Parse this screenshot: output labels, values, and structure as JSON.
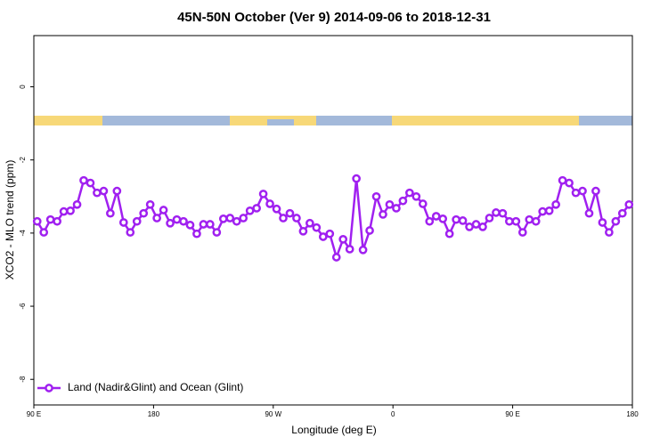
{
  "chart_data": {
    "type": "line",
    "title": "45N-50N October (Ver 9)   2014-09-06 to 2018-12-31",
    "xlabel": "Longitude (deg E)",
    "ylabel": "XCO2 - MLO trend (ppm)",
    "xlim": [
      90,
      540
    ],
    "xticks": [
      {
        "value": 90,
        "label": "90 E"
      },
      {
        "value": 180,
        "label": "180"
      },
      {
        "value": 270,
        "label": "90 W"
      },
      {
        "value": 360,
        "label": "0"
      },
      {
        "value": 450,
        "label": "90 E"
      },
      {
        "value": 540,
        "label": "180"
      }
    ],
    "ylim": [
      -8.7,
      1.4
    ],
    "yticks": [
      0,
      -2,
      -4,
      -6,
      -8
    ],
    "legend": "lower left",
    "x": [
      92.5,
      97.5,
      102.5,
      107.5,
      112.5,
      117.5,
      122.5,
      127.5,
      132.5,
      137.5,
      142.5,
      147.5,
      152.5,
      157.5,
      162.5,
      167.5,
      172.5,
      177.5,
      182.5,
      187.5,
      192.5,
      197.5,
      202.5,
      207.5,
      212.5,
      217.5,
      222.5,
      227.5,
      232.5,
      237.5,
      242.5,
      247.5,
      252.5,
      257.5,
      262.5,
      267.5,
      272.5,
      277.5,
      282.5,
      287.5,
      292.5,
      297.5,
      302.5,
      307.5,
      312.5,
      317.5,
      322.5,
      327.5,
      332.5,
      337.5,
      342.5,
      347.5,
      352.5,
      357.5,
      362.5,
      367.5,
      372.5,
      377.5,
      382.5,
      387.5,
      392.5,
      397.5,
      402.5,
      407.5,
      412.5,
      417.5,
      422.5,
      427.5,
      432.5,
      437.5,
      442.5,
      447.5,
      452.5,
      457.5,
      462.5,
      467.5,
      472.5,
      477.5,
      482.5,
      487.5,
      492.5,
      497.5,
      502.5,
      507.5,
      512.5,
      517.5,
      522.5,
      527.5,
      532.5,
      537.5
    ],
    "series": [
      {
        "name": "Land (Nadir&Glint) and Ocean (Glint)",
        "color": "#a020f0",
        "values": [
          -3.68,
          -3.98,
          -3.63,
          -3.68,
          -3.41,
          -3.39,
          -3.22,
          -2.56,
          -2.63,
          -2.9,
          -2.85,
          -3.46,
          -2.85,
          -3.71,
          -3.98,
          -3.68,
          -3.46,
          -3.22,
          -3.59,
          -3.37,
          -3.73,
          -3.63,
          -3.68,
          -3.78,
          -4.02,
          -3.76,
          -3.76,
          -3.98,
          -3.61,
          -3.59,
          -3.68,
          -3.59,
          -3.39,
          -3.32,
          -2.93,
          -3.2,
          -3.34,
          -3.59,
          -3.46,
          -3.59,
          -3.95,
          -3.73,
          -3.85,
          -4.1,
          -4.02,
          -4.66,
          -4.17,
          -4.44,
          -2.51,
          -4.46,
          -3.93,
          -3.0,
          -3.49,
          -3.22,
          -3.32,
          -3.12,
          -2.9,
          -3.0,
          -3.2,
          -3.68,
          -3.54,
          -3.61,
          -4.02,
          -3.63,
          -3.66,
          -3.83,
          -3.76,
          -3.83,
          -3.59,
          -3.44,
          -3.46,
          -3.68,
          -3.68,
          -3.98,
          -3.63,
          -3.68,
          -3.41,
          -3.39,
          -3.22,
          -2.56,
          -2.63,
          -2.9,
          -2.85,
          -3.46,
          -2.85,
          -3.71,
          -3.98,
          -3.68,
          -3.46,
          -3.22
        ]
      }
    ]
  }
}
